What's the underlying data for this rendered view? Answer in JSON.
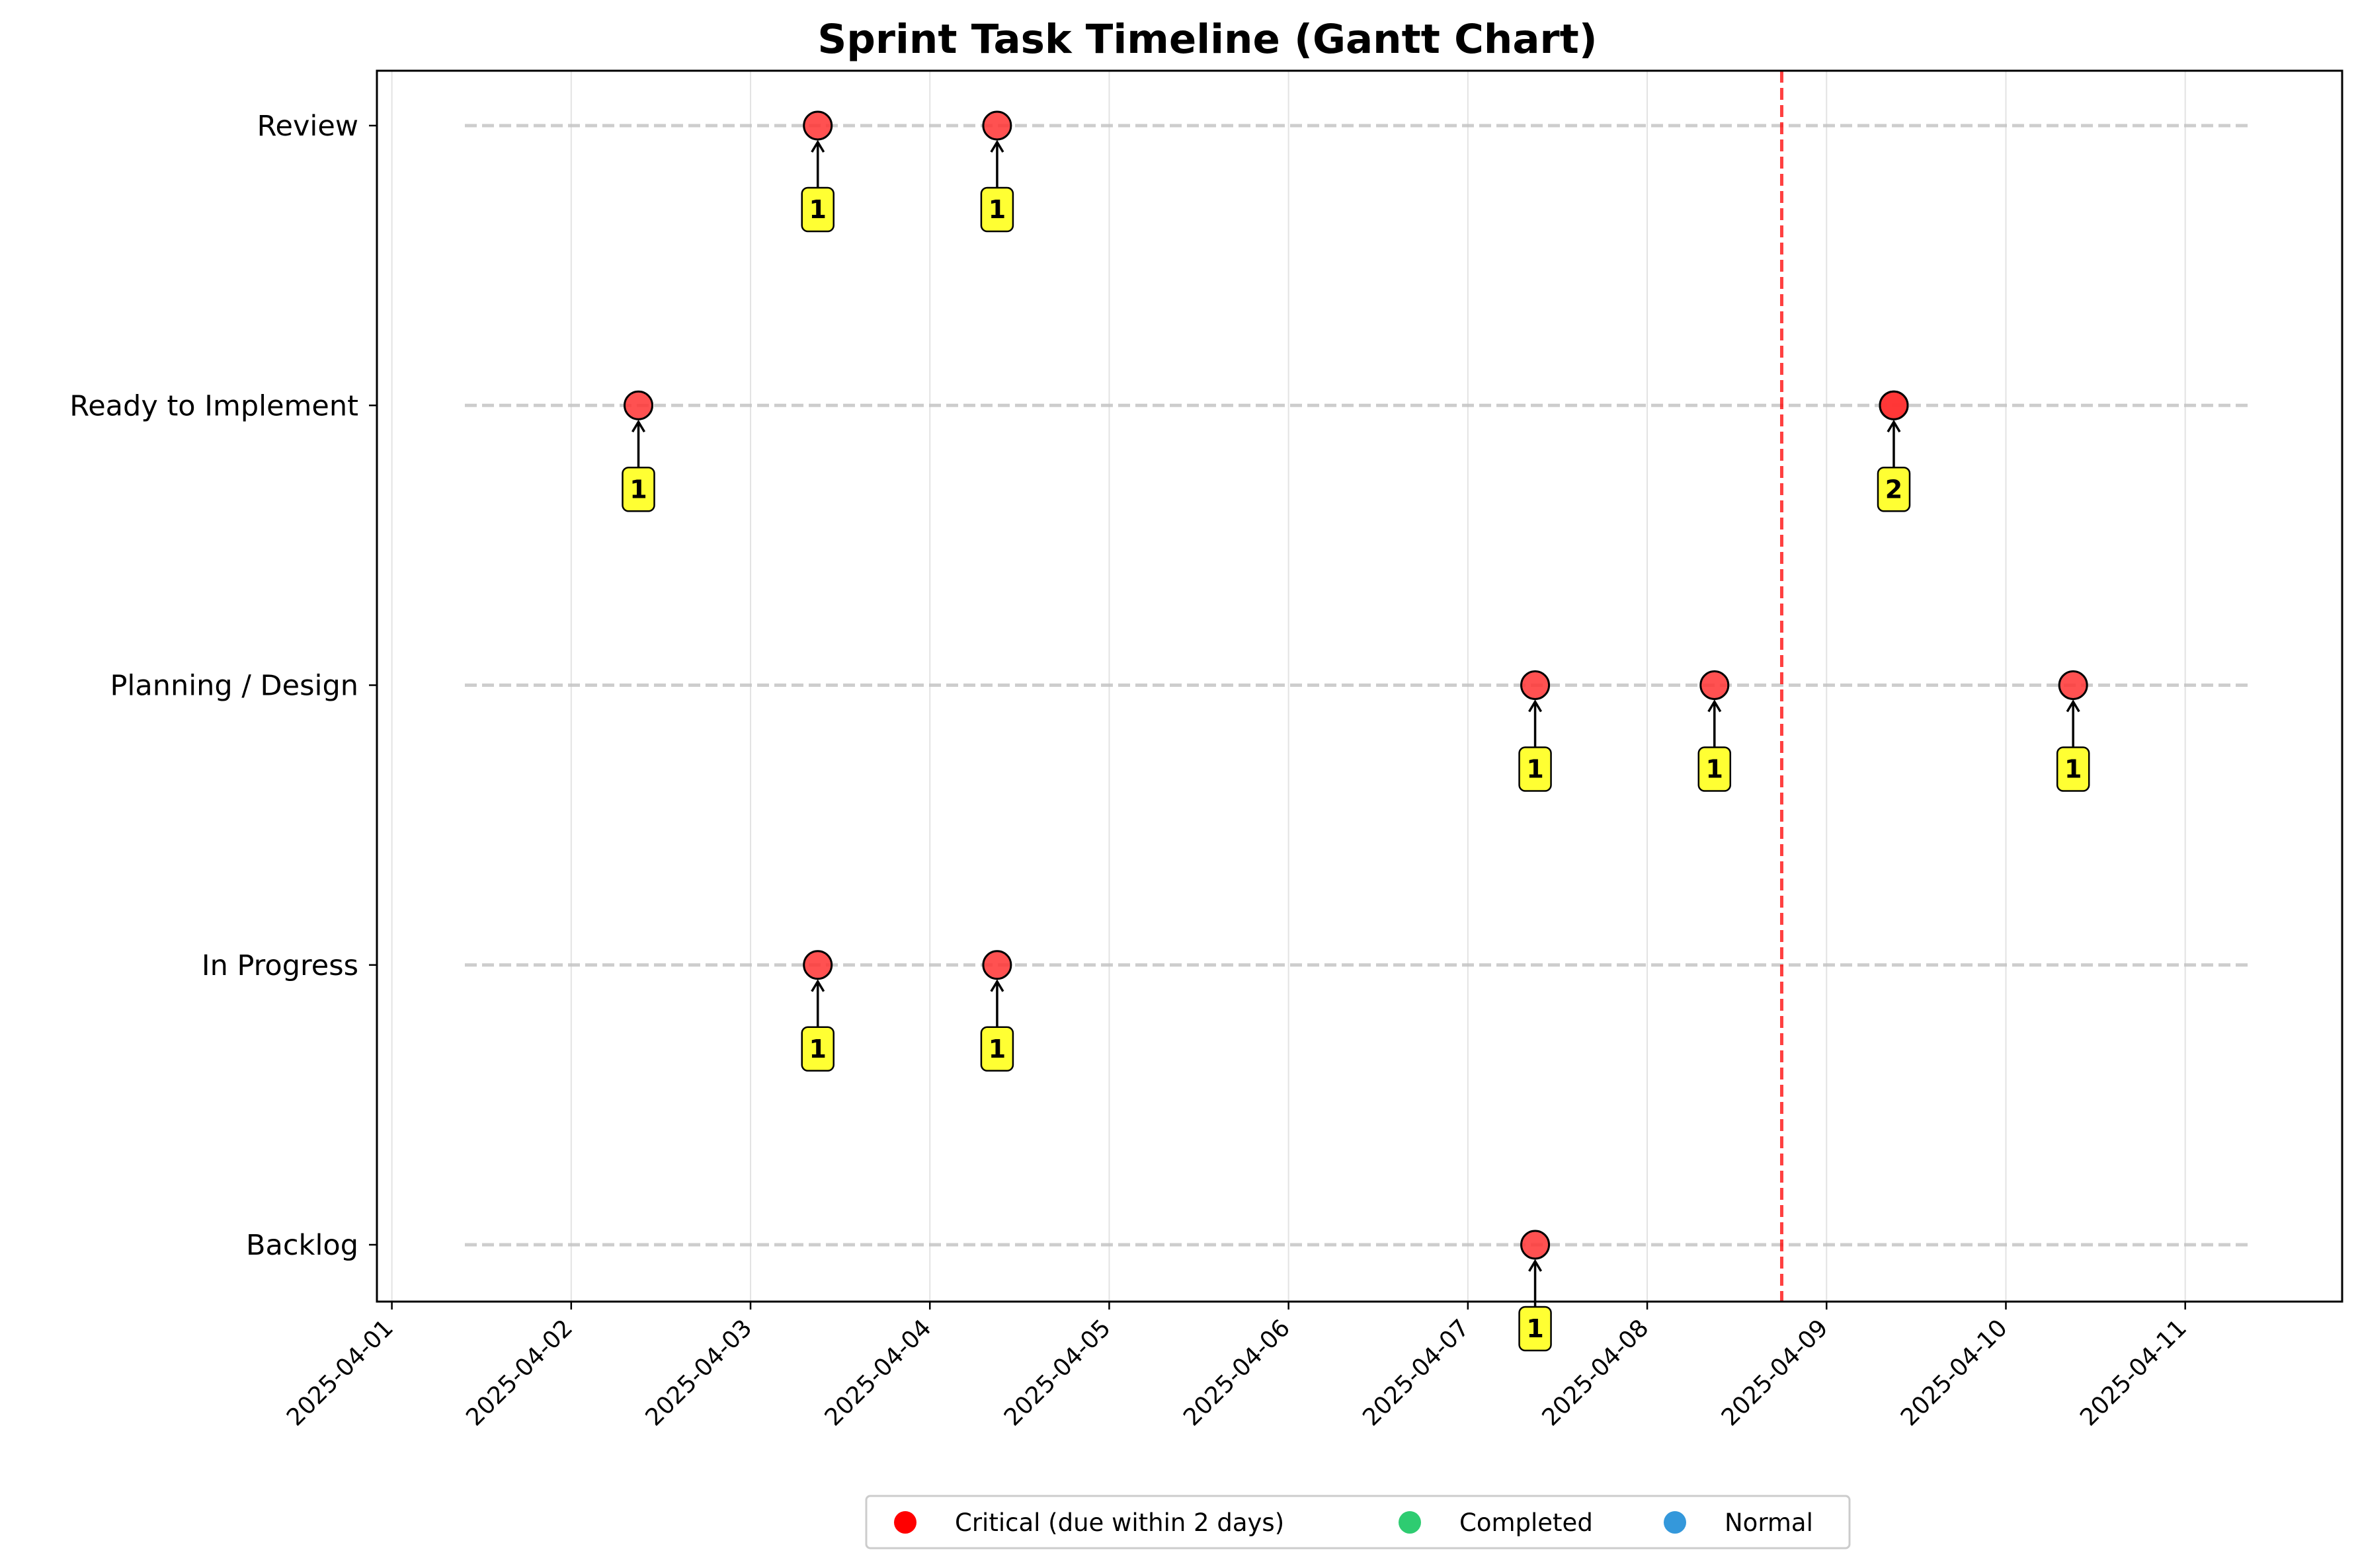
{
  "chart_data": {
    "type": "scatter",
    "title": "Sprint Task Timeline (Gantt Chart)",
    "xlabel": "",
    "ylabel": "",
    "categories": [
      "Backlog",
      "In Progress",
      "Planning / Design",
      "Ready to Implement",
      "Review"
    ],
    "x_ticks": [
      "2025-04-01",
      "2025-04-02",
      "2025-04-03",
      "2025-04-04",
      "2025-04-05",
      "2025-04-06",
      "2025-04-07",
      "2025-04-08",
      "2025-04-09",
      "2025-04-10",
      "2025-04-11"
    ],
    "xlim": [
      "2025-03-31T22:00",
      "2025-04-11T21:00"
    ],
    "today_line": "2025-04-08T18:00",
    "grid": "x",
    "legend_position": "bottom-center",
    "colors": {
      "critical": "#ff0000",
      "completed": "#2ecc71",
      "normal": "#3498db",
      "marker": "#ff3333",
      "today": "#ff0000",
      "badge": "#ffff33"
    },
    "legend": [
      {
        "label": "Critical (due within 2 days)",
        "color": "#ff0000"
      },
      {
        "label": "Completed",
        "color": "#2ecc71"
      },
      {
        "label": "Normal",
        "color": "#3498db"
      }
    ],
    "points": [
      {
        "status": "Review",
        "date": "2025-04-03T09:00",
        "count": 1
      },
      {
        "status": "Review",
        "date": "2025-04-04T09:00",
        "count": 1
      },
      {
        "status": "Ready to Implement",
        "date": "2025-04-02T09:00",
        "count": 1
      },
      {
        "status": "Ready to Implement",
        "date": "2025-04-09T09:00",
        "count": 2
      },
      {
        "status": "Planning / Design",
        "date": "2025-04-07T09:00",
        "count": 1
      },
      {
        "status": "Planning / Design",
        "date": "2025-04-08T09:00",
        "count": 1
      },
      {
        "status": "Planning / Design",
        "date": "2025-04-10T09:00",
        "count": 1
      },
      {
        "status": "In Progress",
        "date": "2025-04-03T09:00",
        "count": 1
      },
      {
        "status": "In Progress",
        "date": "2025-04-04T09:00",
        "count": 1
      },
      {
        "status": "Backlog",
        "date": "2025-04-07T09:00",
        "count": 1
      }
    ]
  }
}
